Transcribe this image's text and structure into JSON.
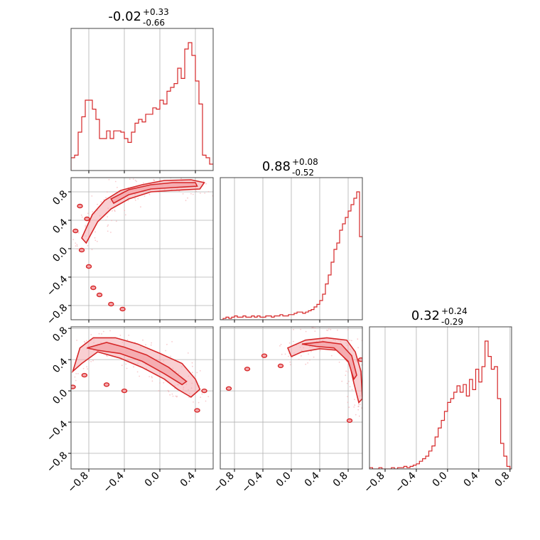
{
  "chart_data": {
    "type": "corner",
    "colors": {
      "line": "#d62728",
      "fill": "#f4a8ad",
      "grid": "#b0b0b0"
    },
    "parameters": [
      {
        "index": 0,
        "median": "-0.02",
        "upper": "+0.33",
        "lower": "-0.66",
        "range": [
          -1.0,
          0.6
        ]
      },
      {
        "index": 1,
        "median": "0.88",
        "upper": "+0.08",
        "lower": "-0.52",
        "range": [
          -1.0,
          1.0
        ]
      },
      {
        "index": 2,
        "median": "0.32",
        "upper": "+0.24",
        "lower": "-0.29",
        "range": [
          -1.0,
          0.82
        ]
      }
    ],
    "ticks": {
      "x0": [
        "-0.8",
        "-0.4",
        "0.0",
        "0.4"
      ],
      "x1": [
        "-0.8",
        "-0.4",
        "0.0",
        "0.4",
        "0.8"
      ],
      "x2": [
        "-0.8",
        "-0.4",
        "0.0",
        "0.4",
        "0.8"
      ],
      "y1": [
        "-0.8",
        "-0.4",
        "0.0",
        "0.4",
        "0.8"
      ],
      "y2": [
        "-0.8",
        "-0.4",
        "0.0",
        "0.4",
        "0.8"
      ]
    },
    "histograms": [
      {
        "param": 0,
        "x_edges_start": -1.0,
        "bin_width": 0.04,
        "counts": [
          0.1,
          0.12,
          0.3,
          0.42,
          0.55,
          0.55,
          0.48,
          0.4,
          0.25,
          0.25,
          0.31,
          0.25,
          0.31,
          0.31,
          0.3,
          0.25,
          0.22,
          0.3,
          0.37,
          0.4,
          0.38,
          0.44,
          0.44,
          0.49,
          0.48,
          0.55,
          0.52,
          0.62,
          0.65,
          0.68,
          0.8,
          0.72,
          0.95,
          1.0,
          0.9,
          0.7,
          0.52,
          0.12,
          0.1,
          0.05
        ]
      },
      {
        "param": 1,
        "x_edges_start": -1.0,
        "bin_width": 0.04,
        "counts": [
          0.0,
          0.01,
          0.02,
          0.01,
          0.02,
          0.03,
          0.02,
          0.02,
          0.03,
          0.02,
          0.02,
          0.03,
          0.02,
          0.03,
          0.02,
          0.02,
          0.03,
          0.03,
          0.02,
          0.03,
          0.03,
          0.04,
          0.03,
          0.03,
          0.04,
          0.04,
          0.05,
          0.06,
          0.06,
          0.05,
          0.06,
          0.07,
          0.08,
          0.1,
          0.12,
          0.15,
          0.2,
          0.28,
          0.35,
          0.45,
          0.55,
          0.6,
          0.7,
          0.75,
          0.8,
          0.85,
          0.9,
          0.95,
          1.0,
          0.65
        ]
      },
      {
        "param": 2,
        "x_edges_start": -1.0,
        "bin_width": 0.04,
        "counts": [
          0.01,
          0.0,
          0.0,
          0.01,
          0.0,
          0.0,
          0.0,
          0.01,
          0.0,
          0.01,
          0.01,
          0.02,
          0.01,
          0.02,
          0.03,
          0.04,
          0.06,
          0.08,
          0.1,
          0.14,
          0.18,
          0.25,
          0.32,
          0.38,
          0.45,
          0.52,
          0.55,
          0.6,
          0.65,
          0.6,
          0.66,
          0.57,
          0.7,
          0.62,
          0.78,
          0.68,
          0.8,
          1.0,
          0.88,
          0.78,
          0.8,
          0.55,
          0.2,
          0.1,
          0.02,
          0.0
        ]
      }
    ],
    "contours": [
      {
        "row": 1,
        "col": 0,
        "outer": [
          [
            -0.88,
            0.15
          ],
          [
            -0.76,
            0.48
          ],
          [
            -0.62,
            0.68
          ],
          [
            -0.44,
            0.82
          ],
          [
            -0.2,
            0.9
          ],
          [
            0.05,
            0.96
          ],
          [
            0.35,
            0.97
          ],
          [
            0.5,
            0.93
          ],
          [
            0.45,
            0.84
          ],
          [
            0.15,
            0.82
          ],
          [
            -0.1,
            0.8
          ],
          [
            -0.35,
            0.7
          ],
          [
            -0.55,
            0.56
          ],
          [
            -0.7,
            0.38
          ],
          [
            -0.83,
            0.08
          ]
        ],
        "inner": [
          [
            -0.55,
            0.7
          ],
          [
            -0.35,
            0.83
          ],
          [
            -0.1,
            0.9
          ],
          [
            0.15,
            0.93
          ],
          [
            0.4,
            0.93
          ],
          [
            0.42,
            0.88
          ],
          [
            0.15,
            0.86
          ],
          [
            -0.1,
            0.84
          ],
          [
            -0.35,
            0.76
          ],
          [
            -0.52,
            0.64
          ]
        ],
        "blobs": [
          [
            -0.95,
            0.25
          ],
          [
            -0.88,
            -0.02
          ],
          [
            -0.8,
            -0.25
          ],
          [
            -0.75,
            -0.55
          ],
          [
            -0.68,
            -0.65
          ],
          [
            -0.55,
            -0.78
          ],
          [
            -0.42,
            -0.85
          ],
          [
            -0.9,
            0.6
          ],
          [
            -0.82,
            0.42
          ]
        ]
      },
      {
        "row": 2,
        "col": 0,
        "outer": [
          [
            -0.98,
            0.25
          ],
          [
            -0.9,
            0.55
          ],
          [
            -0.75,
            0.68
          ],
          [
            -0.5,
            0.68
          ],
          [
            -0.25,
            0.6
          ],
          [
            0.0,
            0.48
          ],
          [
            0.25,
            0.35
          ],
          [
            0.4,
            0.15
          ],
          [
            0.45,
            0.02
          ],
          [
            0.35,
            -0.08
          ],
          [
            0.2,
            0.02
          ],
          [
            0.05,
            0.15
          ],
          [
            -0.2,
            0.3
          ],
          [
            -0.45,
            0.42
          ],
          [
            -0.7,
            0.5
          ],
          [
            -0.88,
            0.35
          ]
        ],
        "inner": [
          [
            -0.82,
            0.55
          ],
          [
            -0.6,
            0.62
          ],
          [
            -0.4,
            0.56
          ],
          [
            -0.15,
            0.46
          ],
          [
            0.1,
            0.3
          ],
          [
            0.3,
            0.12
          ],
          [
            0.25,
            0.08
          ],
          [
            0.05,
            0.22
          ],
          [
            -0.2,
            0.38
          ],
          [
            -0.45,
            0.48
          ],
          [
            -0.7,
            0.52
          ]
        ],
        "blobs": [
          [
            -0.98,
            0.05
          ],
          [
            -0.4,
            0.0
          ],
          [
            0.42,
            -0.25
          ],
          [
            0.5,
            0.0
          ],
          [
            -0.6,
            0.08
          ],
          [
            -0.85,
            0.2
          ]
        ]
      },
      {
        "row": 2,
        "col": 1,
        "outer": [
          [
            -0.05,
            0.55
          ],
          [
            0.2,
            0.65
          ],
          [
            0.5,
            0.68
          ],
          [
            0.78,
            0.65
          ],
          [
            0.9,
            0.5
          ],
          [
            0.98,
            0.25
          ],
          [
            1.0,
            -0.1
          ],
          [
            0.95,
            -0.15
          ],
          [
            0.88,
            0.1
          ],
          [
            0.82,
            0.35
          ],
          [
            0.65,
            0.52
          ],
          [
            0.4,
            0.54
          ],
          [
            0.15,
            0.5
          ],
          [
            0.0,
            0.44
          ]
        ],
        "inner": [
          [
            0.15,
            0.6
          ],
          [
            0.45,
            0.63
          ],
          [
            0.7,
            0.6
          ],
          [
            0.85,
            0.45
          ],
          [
            0.92,
            0.2
          ],
          [
            0.88,
            0.15
          ],
          [
            0.8,
            0.38
          ],
          [
            0.6,
            0.55
          ],
          [
            0.35,
            0.57
          ]
        ],
        "blobs": [
          [
            -0.88,
            0.03
          ],
          [
            -0.62,
            0.28
          ],
          [
            -0.38,
            0.45
          ],
          [
            -0.15,
            0.32
          ],
          [
            0.82,
            -0.38
          ],
          [
            0.98,
            0.4
          ]
        ]
      }
    ]
  }
}
